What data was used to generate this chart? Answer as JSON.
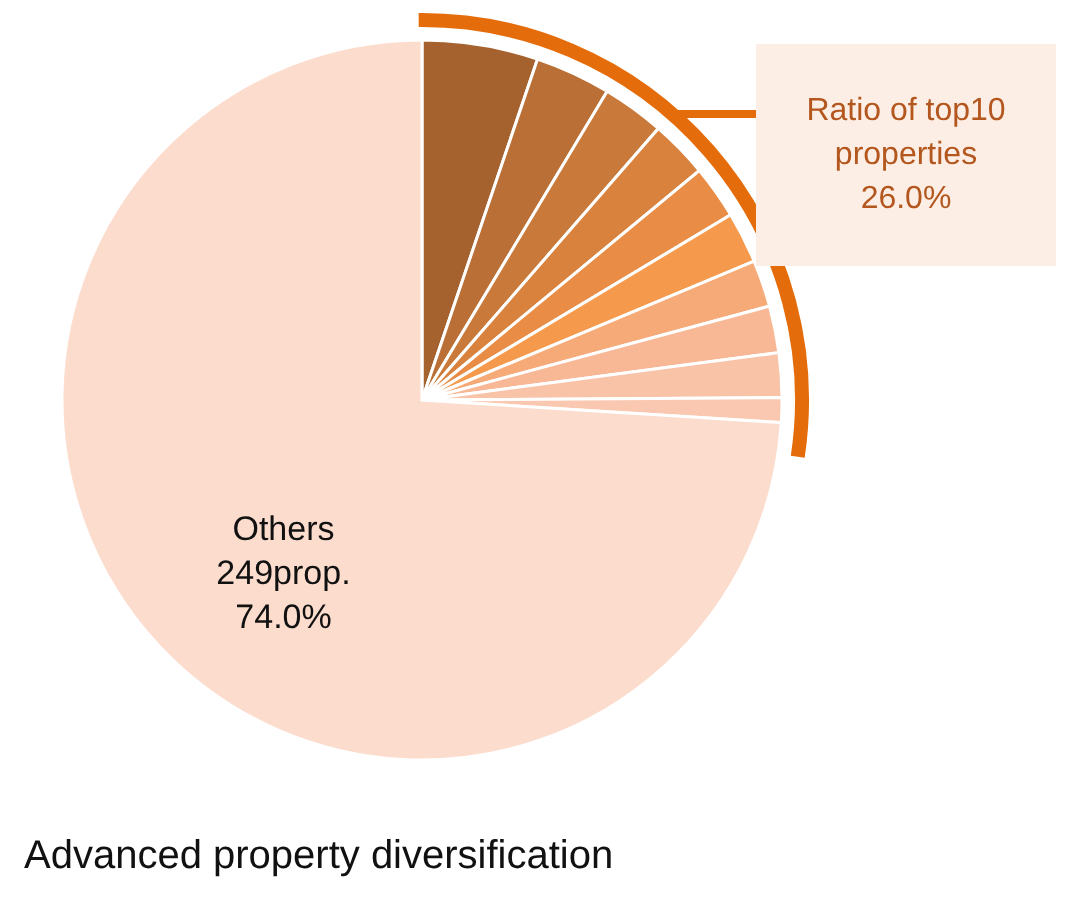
{
  "chart_data": {
    "type": "pie",
    "title": "Advanced property diversification",
    "categories": [
      null,
      null,
      null,
      null,
      null,
      null,
      null,
      null,
      null,
      null,
      "Others"
    ],
    "values": [
      5.2,
      3.4,
      2.8,
      2.6,
      2.4,
      2.3,
      2.1,
      2.1,
      2.0,
      1.1,
      74.0
    ],
    "colors": [
      "#a5622e",
      "#b96f35",
      "#c97a3a",
      "#d9823e",
      "#e98c45",
      "#f59a4c",
      "#f6aa78",
      "#f8b896",
      "#f9c3a8",
      "#fac8b0",
      "#fbdccd"
    ],
    "value_labels": [
      null,
      null,
      null,
      null,
      null,
      null,
      null,
      null,
      null,
      null,
      "74.0%"
    ],
    "annotations": [
      "249prop.",
      "Ratio of top10 properties 26.0%"
    ]
  }
}
